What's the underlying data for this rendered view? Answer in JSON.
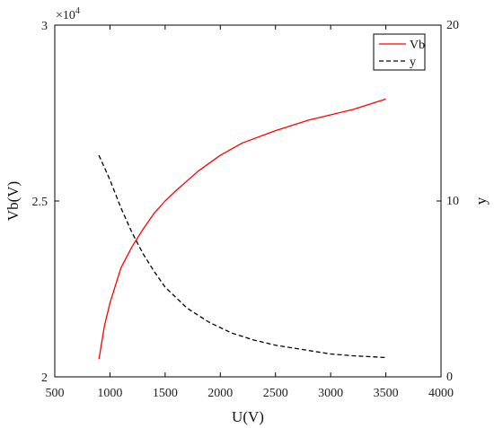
{
  "chart_data": {
    "type": "line",
    "xlabel": "U(V)",
    "ylabel_left": "Vb(V)",
    "ylabel_right": "y",
    "left_axis_multiplier": "×10",
    "left_axis_multiplier_exp": "4",
    "xlim": [
      500,
      4000
    ],
    "ylim_left": [
      20000,
      30000
    ],
    "ylim_right": [
      0,
      20
    ],
    "xticks": [
      "500",
      "1000",
      "1500",
      "2000",
      "2500",
      "3000",
      "3500",
      "4000"
    ],
    "yticks_left": [
      "2",
      "2.5",
      "3"
    ],
    "yticks_right": [
      "0",
      "10",
      "20"
    ],
    "grid": false,
    "legend_position": "top-right",
    "series": [
      {
        "name": "Vb",
        "axis": "left",
        "color": "#ff0000",
        "style": "solid",
        "x": [
          900,
          950,
          1000,
          1100,
          1200,
          1300,
          1400,
          1500,
          1600,
          1800,
          2000,
          2200,
          2500,
          2800,
          3000,
          3200,
          3500
        ],
        "y": [
          20500,
          21450,
          22100,
          23100,
          23700,
          24200,
          24650,
          25000,
          25300,
          25850,
          26300,
          26650,
          27000,
          27300,
          27450,
          27600,
          27900
        ]
      },
      {
        "name": "y",
        "axis": "right",
        "color": "#000000",
        "style": "dashed",
        "x": [
          900,
          1000,
          1100,
          1200,
          1300,
          1400,
          1500,
          1700,
          1900,
          2100,
          2300,
          2500,
          2800,
          3000,
          3200,
          3500
        ],
        "y": [
          12.6,
          11.2,
          9.6,
          8.2,
          7.0,
          6.0,
          5.1,
          3.9,
          3.1,
          2.5,
          2.1,
          1.8,
          1.5,
          1.3,
          1.2,
          1.1
        ]
      }
    ]
  }
}
